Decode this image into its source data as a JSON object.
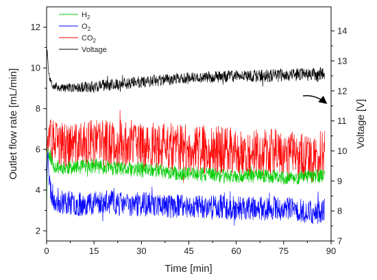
{
  "chart_data": {
    "type": "line",
    "xlabel": "Time [min]",
    "ylabel_left": "Outlet flow rate [mL/min]",
    "ylabel_right": "Voltage [V]",
    "xlim": [
      0,
      90
    ],
    "ylim_left": [
      1.5,
      13
    ],
    "ylim_right": [
      7,
      14.8
    ],
    "x_ticks": [
      0,
      15,
      30,
      45,
      60,
      75,
      90
    ],
    "y_left_ticks": [
      2,
      4,
      6,
      8,
      10,
      12
    ],
    "y_right_ticks": [
      7,
      8,
      9,
      10,
      11,
      12,
      13,
      14
    ],
    "grid": false,
    "legend_position": "top-left",
    "series": [
      {
        "name": "H2",
        "label_base": "H",
        "label_sub": "2",
        "axis": "left",
        "color": "#00cc00",
        "x": [
          0,
          0.3,
          0.6,
          1,
          2,
          5,
          10,
          15,
          20,
          25,
          30,
          35,
          40,
          45,
          50,
          55,
          60,
          65,
          70,
          75,
          80,
          85,
          88
        ],
        "y": [
          3,
          6.2,
          5.6,
          5.8,
          5.2,
          5.1,
          5.1,
          5.2,
          5.1,
          5.0,
          5.0,
          5.0,
          4.8,
          4.8,
          4.8,
          4.7,
          4.7,
          4.7,
          4.7,
          4.6,
          4.6,
          4.7,
          4.7
        ],
        "amp": [
          0,
          0.2,
          0.3,
          0.4,
          0.35,
          0.35,
          0.35,
          0.4,
          0.35,
          0.35,
          0.4,
          0.35,
          0.35,
          0.35,
          0.35,
          0.35,
          0.35,
          0.35,
          0.35,
          0.35,
          0.35,
          0.35,
          0.35
        ]
      },
      {
        "name": "O2",
        "label_base": "O",
        "label_sub": "2",
        "axis": "left",
        "color": "#0000ff",
        "x": [
          0,
          0.4,
          0.8,
          1.5,
          3,
          6,
          10,
          15,
          20,
          25,
          30,
          35,
          40,
          45,
          50,
          55,
          60,
          65,
          70,
          75,
          80,
          85,
          88
        ],
        "y": [
          4.2,
          6.2,
          4.5,
          3.8,
          3.5,
          3.4,
          3.3,
          3.4,
          3.4,
          3.3,
          3.3,
          3.3,
          3.2,
          3.2,
          3.2,
          3.2,
          3.1,
          3.1,
          3.1,
          3.1,
          3.0,
          2.9,
          3.0
        ],
        "amp": [
          0.2,
          0.3,
          0.6,
          0.6,
          0.65,
          0.6,
          0.6,
          0.6,
          0.6,
          0.6,
          0.6,
          0.6,
          0.6,
          0.6,
          0.6,
          0.6,
          0.6,
          0.6,
          0.6,
          0.6,
          0.6,
          0.6,
          0.6
        ]
      },
      {
        "name": "CO2",
        "label_base": "CO",
        "label_sub": "2",
        "axis": "left",
        "color": "#ff0000",
        "x": [
          0,
          0.8,
          2,
          5,
          10,
          15,
          20,
          25,
          30,
          35,
          40,
          45,
          50,
          55,
          60,
          65,
          70,
          75,
          80,
          85,
          88
        ],
        "y": [
          6.4,
          6.4,
          6.3,
          6.2,
          6.2,
          6.3,
          6.3,
          6.3,
          6.2,
          6.1,
          6.1,
          6.0,
          6.0,
          6.0,
          5.9,
          5.9,
          5.8,
          5.8,
          5.7,
          5.6,
          5.9
        ],
        "amp": [
          0.3,
          1.0,
          1.2,
          1.1,
          1.1,
          1.2,
          1.2,
          1.2,
          1.2,
          1.2,
          1.2,
          1.2,
          1.2,
          1.2,
          1.2,
          1.2,
          1.2,
          1.2,
          1.2,
          1.3,
          1.2
        ]
      },
      {
        "name": "Voltage",
        "label_base": "Voltage",
        "label_sub": "",
        "axis": "right",
        "color": "#000000",
        "x": [
          0,
          0.2,
          0.5,
          1,
          2,
          4,
          8,
          15,
          20,
          30,
          40,
          50,
          60,
          70,
          80,
          85,
          88
        ],
        "y": [
          13,
          13.4,
          12.8,
          12.4,
          12.2,
          12.1,
          12.1,
          12.15,
          12.2,
          12.3,
          12.4,
          12.45,
          12.5,
          12.5,
          12.55,
          12.55,
          12.6
        ],
        "amp": [
          0,
          0.05,
          0.1,
          0.1,
          0.15,
          0.15,
          0.15,
          0.2,
          0.2,
          0.2,
          0.2,
          0.2,
          0.2,
          0.22,
          0.22,
          0.22,
          0.22
        ]
      }
    ]
  }
}
